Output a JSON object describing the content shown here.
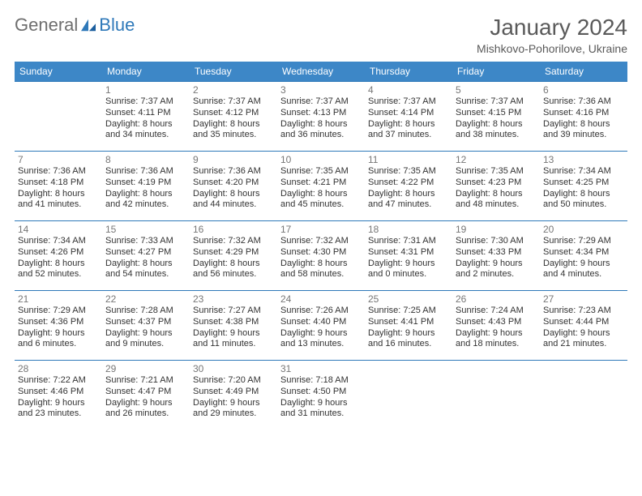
{
  "logo": {
    "text1": "General",
    "text2": "Blue"
  },
  "header": {
    "title": "January 2024",
    "location": "Mishkovo-Pohorilove, Ukraine"
  },
  "weekdays": [
    "Sunday",
    "Monday",
    "Tuesday",
    "Wednesday",
    "Thursday",
    "Friday",
    "Saturday"
  ],
  "colors": {
    "header_bg": "#3d87c7",
    "border": "#2f79b9",
    "title_color": "#5a5a5a",
    "text": "#333333",
    "daynum": "#777777"
  },
  "grid": [
    [
      null,
      {
        "d": "1",
        "sr": "7:37 AM",
        "ss": "4:11 PM",
        "dl1": "Daylight: 8 hours",
        "dl2": "and 34 minutes."
      },
      {
        "d": "2",
        "sr": "7:37 AM",
        "ss": "4:12 PM",
        "dl1": "Daylight: 8 hours",
        "dl2": "and 35 minutes."
      },
      {
        "d": "3",
        "sr": "7:37 AM",
        "ss": "4:13 PM",
        "dl1": "Daylight: 8 hours",
        "dl2": "and 36 minutes."
      },
      {
        "d": "4",
        "sr": "7:37 AM",
        "ss": "4:14 PM",
        "dl1": "Daylight: 8 hours",
        "dl2": "and 37 minutes."
      },
      {
        "d": "5",
        "sr": "7:37 AM",
        "ss": "4:15 PM",
        "dl1": "Daylight: 8 hours",
        "dl2": "and 38 minutes."
      },
      {
        "d": "6",
        "sr": "7:36 AM",
        "ss": "4:16 PM",
        "dl1": "Daylight: 8 hours",
        "dl2": "and 39 minutes."
      }
    ],
    [
      {
        "d": "7",
        "sr": "7:36 AM",
        "ss": "4:18 PM",
        "dl1": "Daylight: 8 hours",
        "dl2": "and 41 minutes."
      },
      {
        "d": "8",
        "sr": "7:36 AM",
        "ss": "4:19 PM",
        "dl1": "Daylight: 8 hours",
        "dl2": "and 42 minutes."
      },
      {
        "d": "9",
        "sr": "7:36 AM",
        "ss": "4:20 PM",
        "dl1": "Daylight: 8 hours",
        "dl2": "and 44 minutes."
      },
      {
        "d": "10",
        "sr": "7:35 AM",
        "ss": "4:21 PM",
        "dl1": "Daylight: 8 hours",
        "dl2": "and 45 minutes."
      },
      {
        "d": "11",
        "sr": "7:35 AM",
        "ss": "4:22 PM",
        "dl1": "Daylight: 8 hours",
        "dl2": "and 47 minutes."
      },
      {
        "d": "12",
        "sr": "7:35 AM",
        "ss": "4:23 PM",
        "dl1": "Daylight: 8 hours",
        "dl2": "and 48 minutes."
      },
      {
        "d": "13",
        "sr": "7:34 AM",
        "ss": "4:25 PM",
        "dl1": "Daylight: 8 hours",
        "dl2": "and 50 minutes."
      }
    ],
    [
      {
        "d": "14",
        "sr": "7:34 AM",
        "ss": "4:26 PM",
        "dl1": "Daylight: 8 hours",
        "dl2": "and 52 minutes."
      },
      {
        "d": "15",
        "sr": "7:33 AM",
        "ss": "4:27 PM",
        "dl1": "Daylight: 8 hours",
        "dl2": "and 54 minutes."
      },
      {
        "d": "16",
        "sr": "7:32 AM",
        "ss": "4:29 PM",
        "dl1": "Daylight: 8 hours",
        "dl2": "and 56 minutes."
      },
      {
        "d": "17",
        "sr": "7:32 AM",
        "ss": "4:30 PM",
        "dl1": "Daylight: 8 hours",
        "dl2": "and 58 minutes."
      },
      {
        "d": "18",
        "sr": "7:31 AM",
        "ss": "4:31 PM",
        "dl1": "Daylight: 9 hours",
        "dl2": "and 0 minutes."
      },
      {
        "d": "19",
        "sr": "7:30 AM",
        "ss": "4:33 PM",
        "dl1": "Daylight: 9 hours",
        "dl2": "and 2 minutes."
      },
      {
        "d": "20",
        "sr": "7:29 AM",
        "ss": "4:34 PM",
        "dl1": "Daylight: 9 hours",
        "dl2": "and 4 minutes."
      }
    ],
    [
      {
        "d": "21",
        "sr": "7:29 AM",
        "ss": "4:36 PM",
        "dl1": "Daylight: 9 hours",
        "dl2": "and 6 minutes."
      },
      {
        "d": "22",
        "sr": "7:28 AM",
        "ss": "4:37 PM",
        "dl1": "Daylight: 9 hours",
        "dl2": "and 9 minutes."
      },
      {
        "d": "23",
        "sr": "7:27 AM",
        "ss": "4:38 PM",
        "dl1": "Daylight: 9 hours",
        "dl2": "and 11 minutes."
      },
      {
        "d": "24",
        "sr": "7:26 AM",
        "ss": "4:40 PM",
        "dl1": "Daylight: 9 hours",
        "dl2": "and 13 minutes."
      },
      {
        "d": "25",
        "sr": "7:25 AM",
        "ss": "4:41 PM",
        "dl1": "Daylight: 9 hours",
        "dl2": "and 16 minutes."
      },
      {
        "d": "26",
        "sr": "7:24 AM",
        "ss": "4:43 PM",
        "dl1": "Daylight: 9 hours",
        "dl2": "and 18 minutes."
      },
      {
        "d": "27",
        "sr": "7:23 AM",
        "ss": "4:44 PM",
        "dl1": "Daylight: 9 hours",
        "dl2": "and 21 minutes."
      }
    ],
    [
      {
        "d": "28",
        "sr": "7:22 AM",
        "ss": "4:46 PM",
        "dl1": "Daylight: 9 hours",
        "dl2": "and 23 minutes."
      },
      {
        "d": "29",
        "sr": "7:21 AM",
        "ss": "4:47 PM",
        "dl1": "Daylight: 9 hours",
        "dl2": "and 26 minutes."
      },
      {
        "d": "30",
        "sr": "7:20 AM",
        "ss": "4:49 PM",
        "dl1": "Daylight: 9 hours",
        "dl2": "and 29 minutes."
      },
      {
        "d": "31",
        "sr": "7:18 AM",
        "ss": "4:50 PM",
        "dl1": "Daylight: 9 hours",
        "dl2": "and 31 minutes."
      },
      null,
      null,
      null
    ]
  ],
  "labels": {
    "sunrise_prefix": "Sunrise: ",
    "sunset_prefix": "Sunset: "
  }
}
